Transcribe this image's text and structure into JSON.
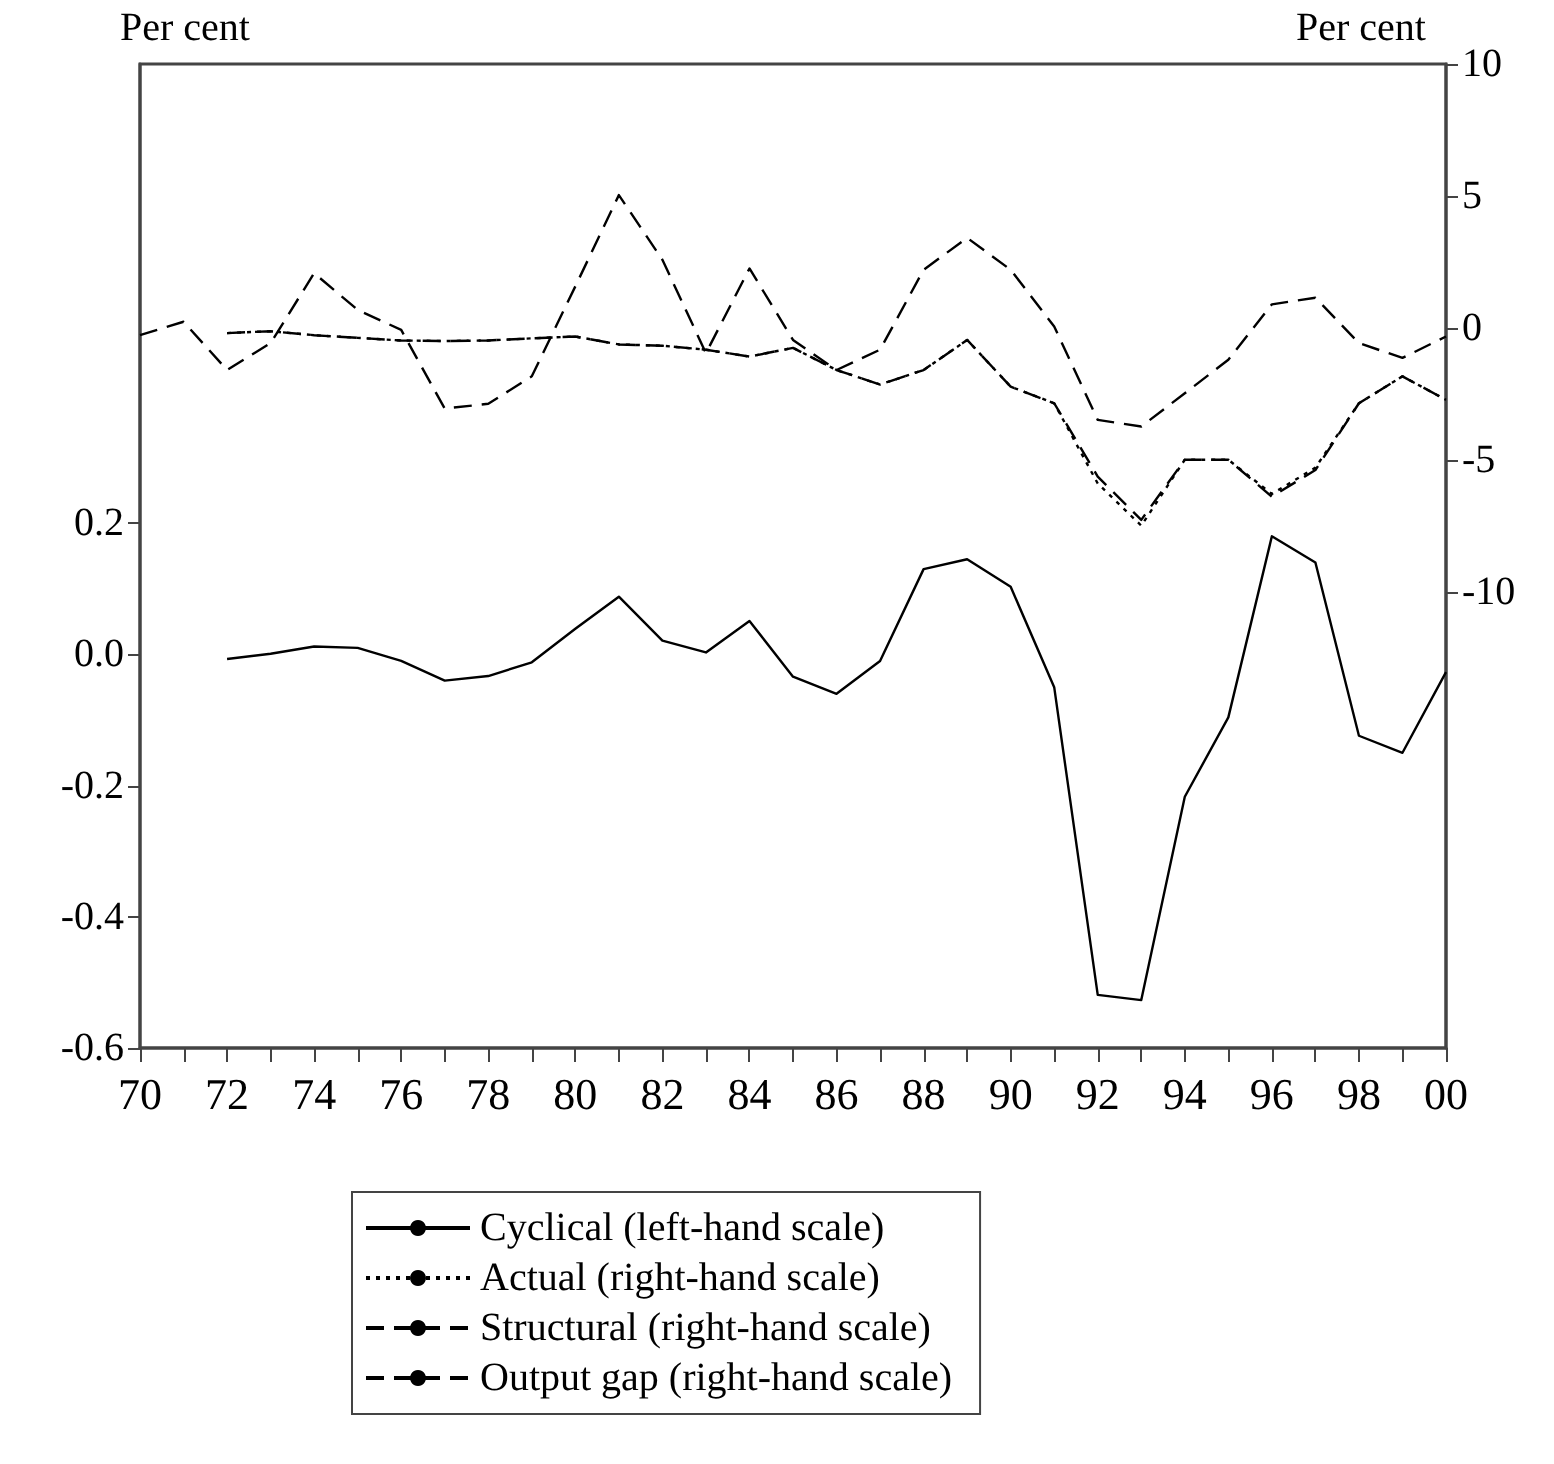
{
  "chart_data": {
    "type": "line",
    "ylabel": "Per cent",
    "y2label": "Per cent",
    "xlim": [
      1970,
      2000
    ],
    "xticks": [
      {
        "value": 1970,
        "label": "70"
      },
      {
        "value": 1971,
        "label": null
      },
      {
        "value": 1972,
        "label": "72"
      },
      {
        "value": 1973,
        "label": null
      },
      {
        "value": 1974,
        "label": "74"
      },
      {
        "value": 1975,
        "label": null
      },
      {
        "value": 1976,
        "label": "76"
      },
      {
        "value": 1977,
        "label": null
      },
      {
        "value": 1978,
        "label": "78"
      },
      {
        "value": 1979,
        "label": null
      },
      {
        "value": 1980,
        "label": "80"
      },
      {
        "value": 1981,
        "label": null
      },
      {
        "value": 1982,
        "label": "82"
      },
      {
        "value": 1983,
        "label": null
      },
      {
        "value": 1984,
        "label": "84"
      },
      {
        "value": 1985,
        "label": null
      },
      {
        "value": 1986,
        "label": "86"
      },
      {
        "value": 1987,
        "label": null
      },
      {
        "value": 1988,
        "label": "88"
      },
      {
        "value": 1989,
        "label": null
      },
      {
        "value": 1990,
        "label": "90"
      },
      {
        "value": 1991,
        "label": null
      },
      {
        "value": 1992,
        "label": "92"
      },
      {
        "value": 1993,
        "label": null
      },
      {
        "value": 1994,
        "label": "94"
      },
      {
        "value": 1995,
        "label": null
      },
      {
        "value": 1996,
        "label": "96"
      },
      {
        "value": 1997,
        "label": null
      },
      {
        "value": 1998,
        "label": "98"
      },
      {
        "value": 1999,
        "label": null
      },
      {
        "value": 2000,
        "label": "00"
      }
    ],
    "ylim": [
      -0.6,
      0.9
    ],
    "yticks": [
      -0.6,
      -0.4,
      -0.2,
      {
        "value": 0,
        "label": "0.0"
      },
      0.2
    ],
    "y2lim": [
      -27.3,
      10
    ],
    "y2ticks": [
      -10,
      -5,
      0,
      5,
      10
    ],
    "grid": false,
    "legend": "bottom",
    "marker": "none",
    "series": [
      {
        "name": "Cyclical (left-hand scale)",
        "color": "#000000",
        "line_style": "solid",
        "x": [
          1972,
          1973,
          1974,
          1975,
          1976,
          1977,
          1978,
          1979,
          1980,
          1981,
          1982,
          1983,
          1984,
          1985,
          1986,
          1987,
          1988,
          1989,
          1990,
          1991,
          1992,
          1993,
          1994,
          1995,
          1996,
          1997,
          1998,
          1999,
          2000
        ],
        "values": [
          -0.007,
          0.001,
          0.012,
          0.01,
          -0.01,
          -0.04,
          -0.033,
          -0.012,
          0.039,
          0.088,
          0.021,
          0.003,
          0.051,
          -0.034,
          -0.06,
          -0.01,
          0.13,
          0.145,
          0.103,
          -0.05,
          -0.519,
          -0.527,
          -0.217,
          -0.096,
          0.18,
          0.14,
          -0.124,
          -0.15,
          -0.027
        ]
      },
      {
        "name": "Actual (right-hand scale)",
        "color": "#000000",
        "line_style": "dotted",
        "axis": "y2",
        "x": [
          1972,
          1973,
          1974,
          1975,
          1976,
          1977,
          1978,
          1979,
          1980,
          1981,
          1982,
          1983,
          1984,
          1985,
          1986,
          1987,
          1988,
          1989,
          1990,
          1991,
          1992,
          1993,
          1994,
          1995,
          1996,
          1997,
          1998,
          1999,
          2000
        ],
        "values": [
          -0.2,
          -0.13,
          -0.28,
          -0.38,
          -0.48,
          -0.5,
          -0.48,
          -0.4,
          -0.33,
          -0.63,
          -0.68,
          -0.83,
          -1.09,
          -0.76,
          -1.6,
          -2.15,
          -1.6,
          -0.46,
          -2.23,
          -2.86,
          -5.9,
          -7.5,
          -5.0,
          -5.0,
          -6.3,
          -5.3,
          -2.86,
          -1.84,
          -2.73
        ]
      },
      {
        "name": "Structural (right-hand scale)",
        "color": "#000000",
        "line_style": "dashed",
        "axis": "y2",
        "x": [
          1972,
          1973,
          1974,
          1975,
          1976,
          1977,
          1978,
          1979,
          1980,
          1981,
          1982,
          1983,
          1984,
          1985,
          1986,
          1987,
          1988,
          1989,
          1990,
          1991,
          1992,
          1993,
          1994,
          1995,
          1996,
          1997,
          1998,
          1999,
          2000
        ],
        "values": [
          -0.2,
          -0.13,
          -0.28,
          -0.38,
          -0.48,
          -0.5,
          -0.48,
          -0.4,
          -0.33,
          -0.63,
          -0.68,
          -0.83,
          -1.09,
          -0.76,
          -1.6,
          -2.15,
          -1.6,
          -0.46,
          -2.23,
          -2.86,
          -5.64,
          -7.28,
          -5.0,
          -5.0,
          -6.4,
          -5.39,
          -2.86,
          -1.84,
          -2.73
        ]
      },
      {
        "name": "Output gap (right-hand scale)",
        "color": "#000000",
        "line_style": "dashed",
        "axis": "y2",
        "x": [
          1970,
          1971,
          1972,
          1973,
          1974,
          1975,
          1976,
          1977,
          1978,
          1979,
          1980,
          1981,
          1982,
          1983,
          1984,
          1985,
          1986,
          1987,
          1988,
          1989,
          1990,
          1991,
          1992,
          1993,
          1994,
          1995,
          1996,
          1997,
          1998,
          1999,
          2000
        ],
        "values": [
          -0.28,
          0.23,
          -1.6,
          -0.58,
          2.07,
          0.68,
          -0.08,
          -3.06,
          -2.88,
          -1.84,
          1.57,
          5.03,
          2.58,
          -0.96,
          2.25,
          -0.46,
          -1.6,
          -0.83,
          2.2,
          3.41,
          2.2,
          0.05,
          -3.49,
          -3.74,
          -2.48,
          -1.21,
          0.89,
          1.14,
          -0.58,
          -1.14,
          -0.33
        ]
      }
    ]
  }
}
